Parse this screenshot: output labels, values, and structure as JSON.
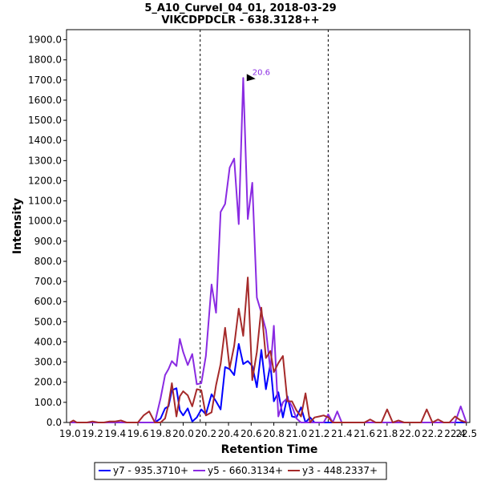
{
  "chart_data": {
    "type": "line",
    "title": "5_A10_CurveI_04_01, 2018-03-29",
    "subtitle": "VIKCDPDCLR - 638.3128++",
    "xlabel": "Retention Time",
    "ylabel": "Intensity",
    "xlim": [
      18.97,
      22.53
    ],
    "ylim": [
      0,
      1950
    ],
    "x_ticks": [
      "19.0",
      "19.2",
      "19.4",
      "19.6",
      "19.8",
      "20.0",
      "20.2",
      "20.4",
      "20.6",
      "20.8",
      "21.0",
      "21.2",
      "21.4",
      "21.6",
      "21.8",
      "22.0",
      "22.2",
      "22.4",
      "22.5"
    ],
    "x_tick_values": [
      19.0,
      19.2,
      19.4,
      19.6,
      19.8,
      20.0,
      20.2,
      20.4,
      20.6,
      20.8,
      21.0,
      21.2,
      21.4,
      21.6,
      21.8,
      22.0,
      22.2,
      22.4,
      22.5
    ],
    "y_ticks": [
      "0.0",
      "100.0",
      "200.0",
      "300.0",
      "400.0",
      "500.0",
      "600.0",
      "700.0",
      "800.0",
      "900.0",
      "1000.0",
      "1100.0",
      "1200.0",
      "1300.0",
      "1400.0",
      "1500.0",
      "1600.0",
      "1700.0",
      "1800.0",
      "1900.0"
    ],
    "y_tick_values": [
      0,
      100,
      200,
      300,
      400,
      500,
      600,
      700,
      800,
      900,
      1000,
      1100,
      1200,
      1300,
      1400,
      1500,
      1600,
      1700,
      1800,
      1900
    ],
    "vlines": [
      20.15,
      21.28
    ],
    "annotations": [
      {
        "text": "20.6",
        "x": 20.66,
        "y": 1710,
        "color": "#8a2be2"
      }
    ],
    "legend_position": "bottom",
    "series": [
      {
        "name": "y7 - 935.3710+",
        "color": "#0000ff",
        "x": [
          19.0,
          19.05,
          19.1,
          19.15,
          19.2,
          19.25,
          19.3,
          19.35,
          19.4,
          19.45,
          19.5,
          19.55,
          19.6,
          19.65,
          19.7,
          19.75,
          19.8,
          19.84,
          19.87,
          19.9,
          19.94,
          19.97,
          20.0,
          20.04,
          20.08,
          20.12,
          20.16,
          20.2,
          20.25,
          20.29,
          20.33,
          20.37,
          20.41,
          20.45,
          20.49,
          20.53,
          20.57,
          20.61,
          20.65,
          20.69,
          20.73,
          20.77,
          20.8,
          20.84,
          20.88,
          20.92,
          20.96,
          21.0,
          21.04,
          21.08,
          21.12,
          21.16,
          21.2,
          21.24,
          21.28,
          21.32,
          21.36,
          21.4,
          21.5,
          21.6,
          21.7,
          21.8,
          21.9,
          22.0,
          22.1,
          22.2,
          22.3,
          22.4,
          22.45,
          22.5
        ],
        "values": [
          0,
          0,
          0,
          0,
          0,
          0,
          0,
          0,
          0,
          0,
          0,
          0,
          0,
          0,
          0,
          0,
          20,
          70,
          80,
          160,
          170,
          60,
          35,
          70,
          5,
          25,
          65,
          40,
          140,
          105,
          65,
          275,
          265,
          235,
          390,
          290,
          305,
          280,
          175,
          360,
          165,
          290,
          105,
          150,
          25,
          130,
          30,
          25,
          75,
          0,
          25,
          0,
          0,
          0,
          0,
          0,
          0,
          0,
          0,
          0,
          0,
          0,
          0,
          0,
          0,
          0,
          0,
          0,
          0,
          0
        ]
      },
      {
        "name": "y5 - 660.3134+",
        "color": "#8a2be2",
        "x": [
          19.0,
          19.05,
          19.1,
          19.15,
          19.2,
          19.25,
          19.3,
          19.35,
          19.4,
          19.45,
          19.5,
          19.55,
          19.6,
          19.65,
          19.7,
          19.75,
          19.8,
          19.84,
          19.87,
          19.9,
          19.94,
          19.97,
          20.0,
          20.04,
          20.08,
          20.12,
          20.16,
          20.2,
          20.25,
          20.29,
          20.33,
          20.37,
          20.41,
          20.45,
          20.49,
          20.53,
          20.57,
          20.61,
          20.65,
          20.69,
          20.73,
          20.77,
          20.8,
          20.84,
          20.88,
          20.92,
          20.96,
          21.0,
          21.04,
          21.08,
          21.12,
          21.16,
          21.2,
          21.24,
          21.28,
          21.32,
          21.36,
          21.4,
          21.45,
          21.5,
          21.55,
          21.6,
          21.7,
          21.8,
          21.9,
          22.0,
          22.1,
          22.2,
          22.3,
          22.4,
          22.45,
          22.5
        ],
        "values": [
          0,
          0,
          0,
          0,
          0,
          0,
          0,
          0,
          0,
          0,
          0,
          0,
          0,
          0,
          0,
          0,
          120,
          235,
          265,
          305,
          280,
          415,
          350,
          285,
          340,
          190,
          195,
          330,
          685,
          545,
          1045,
          1085,
          1265,
          1310,
          985,
          1710,
          1010,
          1190,
          620,
          545,
          460,
          260,
          480,
          30,
          100,
          120,
          80,
          20,
          0,
          0,
          0,
          0,
          0,
          0,
          40,
          0,
          55,
          0,
          0,
          0,
          0,
          0,
          0,
          0,
          0,
          0,
          0,
          0,
          0,
          0,
          80,
          0
        ]
      },
      {
        "name": "y3 - 448.2337+",
        "color": "#a52a2a",
        "x": [
          19.0,
          19.03,
          19.06,
          19.1,
          19.15,
          19.2,
          19.25,
          19.3,
          19.35,
          19.4,
          19.45,
          19.5,
          19.55,
          19.6,
          19.65,
          19.7,
          19.75,
          19.8,
          19.84,
          19.87,
          19.9,
          19.94,
          19.97,
          20.0,
          20.04,
          20.08,
          20.12,
          20.16,
          20.2,
          20.25,
          20.29,
          20.33,
          20.37,
          20.41,
          20.45,
          20.49,
          20.53,
          20.57,
          20.61,
          20.65,
          20.69,
          20.73,
          20.77,
          20.8,
          20.84,
          20.88,
          20.92,
          20.96,
          21.0,
          21.04,
          21.08,
          21.12,
          21.16,
          21.2,
          21.24,
          21.28,
          21.32,
          21.36,
          21.4,
          21.45,
          21.5,
          21.55,
          21.6,
          21.65,
          21.7,
          21.75,
          21.8,
          21.85,
          21.9,
          21.95,
          22.0,
          22.05,
          22.1,
          22.15,
          22.2,
          22.25,
          22.3,
          22.35,
          22.4,
          22.45,
          22.5
        ],
        "values": [
          0,
          10,
          0,
          0,
          0,
          5,
          0,
          0,
          5,
          5,
          10,
          0,
          0,
          0,
          35,
          55,
          0,
          0,
          20,
          90,
          195,
          30,
          130,
          155,
          135,
          80,
          165,
          160,
          35,
          50,
          185,
          290,
          470,
          270,
          380,
          565,
          430,
          720,
          210,
          350,
          570,
          320,
          355,
          250,
          295,
          330,
          105,
          105,
          60,
          30,
          145,
          0,
          25,
          30,
          35,
          25,
          0,
          0,
          0,
          0,
          0,
          0,
          0,
          15,
          0,
          0,
          65,
          0,
          10,
          0,
          0,
          0,
          0,
          65,
          0,
          15,
          0,
          0,
          30,
          10,
          0
        ]
      }
    ]
  }
}
